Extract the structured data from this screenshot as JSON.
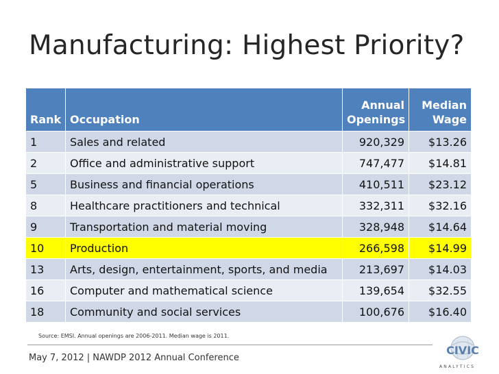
{
  "title": "Manufacturing: Highest Priority?",
  "table": {
    "headers": {
      "rank": "Rank",
      "occupation": "Occupation",
      "openings_line1": "Annual",
      "openings_line2": "Openings",
      "wage_line1": "Median",
      "wage_line2": "Wage"
    },
    "rows": [
      {
        "rank": "1",
        "occupation": "Sales and related",
        "openings": "920,329",
        "wage": "$13.26"
      },
      {
        "rank": "2",
        "occupation": "Office and administrative support",
        "openings": "747,477",
        "wage": "$14.81"
      },
      {
        "rank": "5",
        "occupation": "Business and financial operations",
        "openings": "410,511",
        "wage": "$23.12"
      },
      {
        "rank": "8",
        "occupation": "Healthcare practitioners and technical",
        "openings": "332,311",
        "wage": "$32.16"
      },
      {
        "rank": "9",
        "occupation": "Transportation and material moving",
        "openings": "328,948",
        "wage": "$14.64"
      },
      {
        "rank": "10",
        "occupation": "Production",
        "openings": "266,598",
        "wage": "$14.99"
      },
      {
        "rank": "13",
        "occupation": "Arts, design, entertainment, sports, and media",
        "openings": "213,697",
        "wage": "$14.03"
      },
      {
        "rank": "16",
        "occupation": "Computer and mathematical science",
        "openings": "139,654",
        "wage": "$32.55"
      },
      {
        "rank": "18",
        "occupation": "Community and social services",
        "openings": "100,676",
        "wage": "$16.40"
      }
    ]
  },
  "source_note": "Source: EMSI. Annual openings  are 2006-2011. Median wage is 2011.",
  "footer": "May 7, 2012 | NAWDP 2012 Annual Conference",
  "logo": {
    "icon": "civic-logo-icon",
    "letters": "CIVIC",
    "tagline": "ANALYTICS"
  },
  "colors": {
    "header_blue": "#4f81bd",
    "row_band_dark": "#d0d8e8",
    "row_band_light": "#e9edf4",
    "highlight": "#ffff00"
  }
}
